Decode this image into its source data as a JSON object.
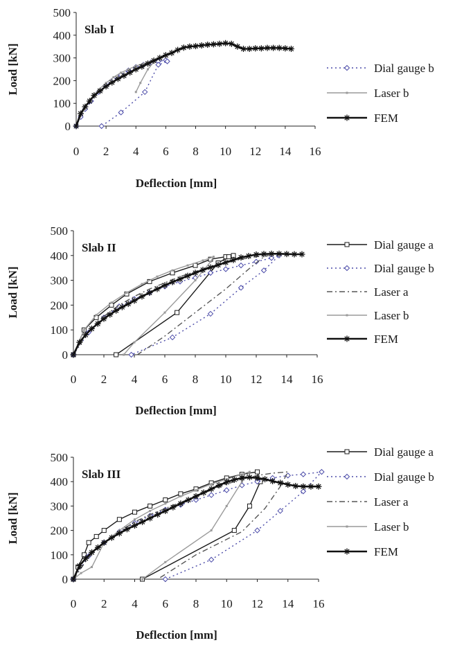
{
  "chart_data": [
    {
      "type": "line",
      "title": "Slab I",
      "xlabel": "Deflection [mm]",
      "ylabel": "Load [kN]",
      "xlim": [
        0,
        16
      ],
      "ylim": [
        0,
        500
      ],
      "xticks": [
        "0",
        "2",
        "4",
        "6",
        "8",
        "10",
        "12",
        "14",
        "16"
      ],
      "yticks": [
        "0",
        "100",
        "200",
        "300",
        "400",
        "500"
      ],
      "series": [
        {
          "name": "Dial gauge b",
          "style": "dialb",
          "color": "#4a4aa8",
          "x": [
            0,
            0.3,
            0.6,
            1,
            1.5,
            2,
            2.5,
            3,
            3.5,
            4,
            4.5,
            5,
            5.5,
            6,
            6.1,
            5.5,
            4.6,
            3,
            1.7
          ],
          "y": [
            0,
            40,
            75,
            110,
            150,
            180,
            205,
            225,
            245,
            260,
            270,
            280,
            285,
            290,
            285,
            270,
            150,
            60,
            0
          ]
        },
        {
          "name": "Laser b",
          "style": "laserb",
          "color": "#9a9a9a",
          "x": [
            0,
            0.5,
            1,
            1.5,
            2,
            2.5,
            3,
            3.5,
            4,
            4.5,
            5,
            5.3,
            4.8,
            4.3,
            4
          ],
          "y": [
            0,
            70,
            120,
            160,
            190,
            215,
            235,
            250,
            265,
            275,
            285,
            290,
            250,
            190,
            150
          ]
        },
        {
          "name": "FEM",
          "style": "fem",
          "color": "#111111",
          "x": [
            0,
            0.3,
            0.6,
            0.9,
            1.2,
            1.6,
            2,
            2.4,
            2.8,
            3.2,
            3.6,
            4,
            4.4,
            4.8,
            5.2,
            5.6,
            6,
            6.4,
            6.8,
            7.2,
            7.6,
            8,
            8.4,
            8.8,
            9.2,
            9.6,
            10,
            10.4,
            10.8,
            11.2,
            11.6,
            12,
            12.4,
            12.8,
            13.2,
            13.6,
            14,
            14.4
          ],
          "y": [
            0,
            55,
            85,
            110,
            135,
            155,
            175,
            192,
            208,
            222,
            236,
            250,
            262,
            275,
            288,
            300,
            312,
            322,
            335,
            345,
            350,
            352,
            355,
            358,
            360,
            362,
            365,
            362,
            350,
            340,
            340,
            342,
            342,
            344,
            344,
            344,
            342,
            340
          ]
        }
      ]
    },
    {
      "type": "line",
      "title": "Slab II",
      "xlabel": "Deflection [mm]",
      "ylabel": "Load [kN]",
      "xlim": [
        0,
        16
      ],
      "ylim": [
        0,
        500
      ],
      "xticks": [
        "0",
        "2",
        "4",
        "6",
        "8",
        "10",
        "12",
        "14",
        "16"
      ],
      "yticks": [
        "0",
        "100",
        "200",
        "300",
        "400",
        "500"
      ],
      "series": [
        {
          "name": "Dial gauge a",
          "style": "diala",
          "color": "#1a1a1a",
          "x": [
            0,
            0.7,
            1.5,
            2.5,
            3.5,
            5,
            6.5,
            8,
            9,
            10,
            10.5,
            10.2,
            9.5,
            6.8,
            2.8
          ],
          "y": [
            0,
            100,
            150,
            200,
            245,
            295,
            330,
            360,
            385,
            395,
            400,
            395,
            370,
            170,
            0
          ]
        },
        {
          "name": "Dial gauge b",
          "style": "dialb",
          "color": "#4a4aa8",
          "x": [
            0,
            1,
            2,
            3,
            4,
            5,
            6,
            7,
            8,
            9,
            10,
            11,
            12,
            13,
            13.5,
            12.5,
            11,
            9,
            6.5,
            3.8
          ],
          "y": [
            0,
            90,
            150,
            195,
            225,
            250,
            275,
            295,
            310,
            330,
            345,
            360,
            375,
            390,
            400,
            340,
            270,
            165,
            70,
            0
          ]
        },
        {
          "name": "Laser a",
          "style": "lasera",
          "color": "#555555",
          "x": [
            0,
            1,
            2,
            3,
            4,
            5,
            6,
            7,
            8,
            9,
            10,
            11,
            12,
            12.8,
            12.5,
            11.5,
            10,
            8,
            6,
            4.2
          ],
          "y": [
            0,
            95,
            155,
            200,
            235,
            265,
            290,
            315,
            335,
            355,
            370,
            385,
            395,
            400,
            395,
            345,
            265,
            170,
            75,
            0
          ]
        },
        {
          "name": "Laser b",
          "style": "laserb",
          "color": "#9a9a9a",
          "x": [
            0,
            0.7,
            1.5,
            2.5,
            3.5,
            4.5,
            5.5,
            6.5,
            7.5,
            8.5,
            9.2,
            9,
            8,
            6,
            4,
            3.3
          ],
          "y": [
            0,
            100,
            160,
            210,
            250,
            285,
            315,
            340,
            360,
            380,
            395,
            375,
            300,
            170,
            50,
            0
          ]
        },
        {
          "name": "FEM",
          "style": "fem",
          "color": "#111111",
          "x": [
            0,
            0.4,
            0.8,
            1.2,
            1.6,
            2,
            2.4,
            2.8,
            3.2,
            3.6,
            4,
            4.5,
            5,
            5.5,
            6,
            6.5,
            7,
            7.5,
            8,
            8.5,
            9,
            9.5,
            10,
            10.5,
            11,
            11.5,
            12,
            12.5,
            13,
            13.5,
            14,
            14.5,
            15
          ],
          "y": [
            0,
            50,
            80,
            105,
            125,
            145,
            162,
            178,
            192,
            205,
            218,
            235,
            250,
            265,
            280,
            293,
            305,
            318,
            330,
            342,
            352,
            362,
            372,
            382,
            392,
            398,
            404,
            406,
            407,
            407,
            406,
            405,
            405
          ]
        }
      ]
    },
    {
      "type": "line",
      "title": "Slab III",
      "xlabel": "Deflection [mm]",
      "ylabel": "Load [kN]",
      "xlim": [
        0,
        16
      ],
      "ylim": [
        0,
        500
      ],
      "xticks": [
        "0",
        "2",
        "4",
        "6",
        "8",
        "10",
        "12",
        "14",
        "16"
      ],
      "yticks": [
        "0",
        "100",
        "200",
        "300",
        "400",
        "500"
      ],
      "series": [
        {
          "name": "Dial gauge a",
          "style": "diala",
          "color": "#1a1a1a",
          "x": [
            0,
            0.3,
            0.7,
            1,
            1.5,
            2,
            3,
            4,
            5,
            6,
            7,
            8,
            9,
            10,
            11,
            12,
            12.2,
            11.5,
            10.5,
            4.5
          ],
          "y": [
            0,
            50,
            100,
            150,
            175,
            200,
            245,
            275,
            300,
            325,
            350,
            370,
            395,
            415,
            430,
            440,
            400,
            300,
            200,
            0
          ]
        },
        {
          "name": "Dial gauge b",
          "style": "dialb",
          "color": "#4a4aa8",
          "x": [
            0,
            1,
            2,
            3,
            4,
            5,
            6,
            7,
            8,
            9,
            10,
            11,
            12,
            13,
            14,
            15,
            16.2,
            15,
            13.5,
            12,
            9,
            6
          ],
          "y": [
            0,
            95,
            150,
            195,
            230,
            260,
            285,
            305,
            325,
            345,
            365,
            385,
            400,
            415,
            425,
            430,
            440,
            360,
            280,
            200,
            80,
            0
          ]
        },
        {
          "name": "Laser a",
          "style": "lasera",
          "color": "#555555",
          "x": [
            0,
            1,
            2,
            3,
            4,
            5,
            6,
            7,
            8,
            9,
            10,
            11,
            12,
            13,
            14,
            13.5,
            12.5,
            11,
            8,
            5.5
          ],
          "y": [
            0,
            90,
            150,
            195,
            235,
            265,
            290,
            315,
            340,
            365,
            390,
            410,
            425,
            435,
            440,
            380,
            290,
            195,
            100,
            0
          ]
        },
        {
          "name": "Laser b",
          "style": "laserb",
          "color": "#9a9a9a",
          "x": [
            0,
            0.5,
            1.2,
            2,
            3,
            4,
            5,
            6,
            7,
            8,
            9,
            10,
            11,
            11.5,
            11,
            10,
            9,
            6,
            4.5
          ],
          "y": [
            0,
            25,
            50,
            150,
            200,
            245,
            280,
            310,
            340,
            365,
            390,
            410,
            430,
            440,
            400,
            300,
            200,
            70,
            0
          ]
        },
        {
          "name": "FEM",
          "style": "fem",
          "color": "#111111",
          "x": [
            0,
            0.4,
            0.8,
            1.2,
            1.6,
            2,
            2.5,
            3,
            3.5,
            4,
            4.5,
            5,
            5.5,
            6,
            6.5,
            7,
            7.5,
            8,
            8.5,
            9,
            9.5,
            10,
            10.5,
            11,
            11.5,
            12,
            12.5,
            13,
            13.5,
            14,
            14.5,
            15,
            15.5,
            16
          ],
          "y": [
            0,
            55,
            85,
            110,
            130,
            150,
            170,
            188,
            205,
            220,
            235,
            250,
            265,
            280,
            295,
            310,
            325,
            340,
            355,
            370,
            385,
            398,
            408,
            415,
            418,
            415,
            410,
            402,
            395,
            388,
            382,
            380,
            380,
            380
          ]
        }
      ]
    }
  ]
}
